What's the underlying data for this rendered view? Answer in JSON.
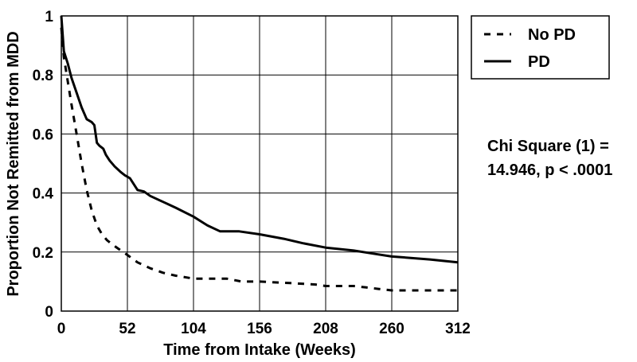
{
  "chart_data": {
    "type": "line",
    "title": "",
    "xlabel": "Time from Intake (Weeks)",
    "ylabel": "Proportion Not Remitted from MDD",
    "xlim": [
      0,
      312
    ],
    "ylim": [
      0,
      1
    ],
    "x_ticks": [
      0,
      52,
      104,
      156,
      208,
      260,
      312
    ],
    "y_ticks": [
      0,
      0.2,
      0.4,
      0.6,
      0.8,
      1
    ],
    "y_tick_labels": [
      "0",
      "0.2",
      "0.4",
      "0.6",
      "0.8",
      "1"
    ],
    "grid": true,
    "legend_position": "top-right",
    "series": [
      {
        "name": "No PD",
        "style": "dashed",
        "color": "#000000",
        "points": [
          [
            0,
            0.96
          ],
          [
            2,
            0.86
          ],
          [
            5,
            0.78
          ],
          [
            8,
            0.7
          ],
          [
            12,
            0.6
          ],
          [
            16,
            0.5
          ],
          [
            20,
            0.41
          ],
          [
            24,
            0.34
          ],
          [
            28,
            0.29
          ],
          [
            32,
            0.26
          ],
          [
            36,
            0.24
          ],
          [
            42,
            0.22
          ],
          [
            52,
            0.19
          ],
          [
            60,
            0.165
          ],
          [
            70,
            0.145
          ],
          [
            80,
            0.13
          ],
          [
            90,
            0.12
          ],
          [
            104,
            0.11
          ],
          [
            120,
            0.11
          ],
          [
            130,
            0.11
          ],
          [
            142,
            0.1
          ],
          [
            156,
            0.1
          ],
          [
            180,
            0.095
          ],
          [
            200,
            0.09
          ],
          [
            208,
            0.085
          ],
          [
            230,
            0.085
          ],
          [
            240,
            0.08
          ],
          [
            250,
            0.075
          ],
          [
            260,
            0.07
          ],
          [
            280,
            0.07
          ],
          [
            312,
            0.07
          ]
        ]
      },
      {
        "name": "PD",
        "style": "solid",
        "color": "#000000",
        "points": [
          [
            0,
            1.0
          ],
          [
            2,
            0.88
          ],
          [
            5,
            0.84
          ],
          [
            8,
            0.79
          ],
          [
            12,
            0.74
          ],
          [
            16,
            0.69
          ],
          [
            20,
            0.65
          ],
          [
            24,
            0.64
          ],
          [
            26,
            0.63
          ],
          [
            28,
            0.57
          ],
          [
            30,
            0.56
          ],
          [
            33,
            0.55
          ],
          [
            35,
            0.53
          ],
          [
            38,
            0.51
          ],
          [
            42,
            0.49
          ],
          [
            47,
            0.47
          ],
          [
            50,
            0.46
          ],
          [
            54,
            0.45
          ],
          [
            60,
            0.41
          ],
          [
            65,
            0.405
          ],
          [
            70,
            0.39
          ],
          [
            80,
            0.37
          ],
          [
            90,
            0.35
          ],
          [
            104,
            0.32
          ],
          [
            115,
            0.29
          ],
          [
            125,
            0.27
          ],
          [
            140,
            0.27
          ],
          [
            156,
            0.26
          ],
          [
            175,
            0.245
          ],
          [
            190,
            0.23
          ],
          [
            208,
            0.215
          ],
          [
            230,
            0.205
          ],
          [
            245,
            0.195
          ],
          [
            260,
            0.185
          ],
          [
            275,
            0.18
          ],
          [
            290,
            0.175
          ],
          [
            312,
            0.165
          ]
        ]
      }
    ],
    "annotation": {
      "line1": "Chi Square (1) =",
      "line2": "14.946, p < .0001"
    }
  }
}
